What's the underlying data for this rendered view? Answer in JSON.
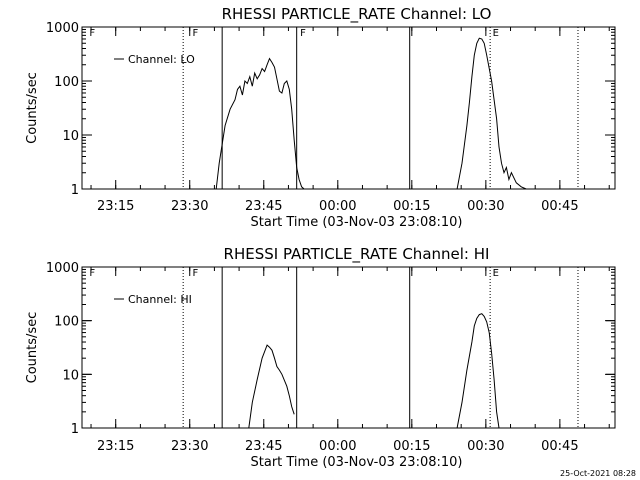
{
  "chart_data": [
    {
      "type": "line",
      "title": "RHESSI PARTICLE_RATE Channel: LO",
      "xlabel": "Start Time (03-Nov-03 23:08:10)",
      "ylabel": "Counts/sec",
      "yscale": "log",
      "ylim": [
        1,
        1000
      ],
      "xlim_minutes": [
        0,
        108
      ],
      "x_tick_labels": [
        "23:15",
        "23:30",
        "23:45",
        "00:00",
        "00:15",
        "00:30",
        "00:45"
      ],
      "x_tick_minutes": [
        6.83,
        21.83,
        36.83,
        51.83,
        66.83,
        81.83,
        96.83
      ],
      "y_tick_labels": [
        "1",
        "10",
        "100",
        "1000"
      ],
      "y_tick_values": [
        1,
        10,
        100,
        1000
      ],
      "legend": {
        "label": "Channel: LO",
        "position": "top-left"
      },
      "series": [
        {
          "name": "Channel: LO",
          "segments": [
            {
              "x": [
                27.2,
                27.8,
                29.0,
                30.0,
                31.0,
                31.5,
                32.0,
                32.5,
                33.0,
                33.5,
                34.0,
                34.5,
                35.0,
                35.5,
                36.0,
                36.5,
                37.0,
                37.5,
                38.0,
                38.5,
                39.0,
                39.5,
                40.0,
                40.5,
                41.0,
                41.5,
                42.0,
                42.5,
                43.0,
                43.5,
                44.0,
                44.5,
                45.0
              ],
              "y": [
                1.0,
                3.0,
                15.0,
                30.0,
                45.0,
                70.0,
                80.0,
                55.0,
                100.0,
                90.0,
                120.0,
                80.0,
                140.0,
                110.0,
                130.0,
                170.0,
                150.0,
                200.0,
                260.0,
                220.0,
                180.0,
                110.0,
                65.0,
                60.0,
                90.0,
                100.0,
                70.0,
                30.0,
                8.0,
                2.5,
                1.5,
                1.1,
                1.0
              ]
            },
            {
              "x": [
                76.0,
                77.0,
                78.0,
                78.5,
                79.0,
                79.5,
                80.0,
                80.5,
                81.0,
                81.5,
                82.0,
                83.0,
                84.0,
                84.5,
                85.0,
                85.5,
                86.0,
                86.5,
                87.0,
                88.0,
                89.0,
                90.0
              ],
              "y": [
                1.0,
                3.0,
                15.0,
                40.0,
                120.0,
                300.0,
                500.0,
                620.0,
                600.0,
                500.0,
                300.0,
                100.0,
                20.0,
                6.0,
                3.0,
                2.0,
                2.5,
                1.5,
                2.0,
                1.3,
                1.1,
                1.0
              ]
            }
          ]
        }
      ],
      "solid_verticals_minutes": [
        28.4,
        43.5,
        66.4
      ],
      "dotted_verticals_minutes": [
        20.5,
        82.7,
        100.5
      ],
      "flags": [
        {
          "label": "F",
          "x_minutes": 1.3
        },
        {
          "label": "F",
          "x_minutes": 22.2
        },
        {
          "label": "F",
          "x_minutes": 44.0
        },
        {
          "label": "E",
          "x_minutes": 83.0
        }
      ]
    },
    {
      "type": "line",
      "title": "RHESSI PARTICLE_RATE Channel: HI",
      "xlabel": "Start Time (03-Nov-03 23:08:10)",
      "ylabel": "Counts/sec",
      "yscale": "log",
      "ylim": [
        1,
        1000
      ],
      "xlim_minutes": [
        0,
        108
      ],
      "x_tick_labels": [
        "23:15",
        "23:30",
        "23:45",
        "00:00",
        "00:15",
        "00:30",
        "00:45"
      ],
      "x_tick_minutes": [
        6.83,
        21.83,
        36.83,
        51.83,
        66.83,
        81.83,
        96.83
      ],
      "y_tick_labels": [
        "1",
        "10",
        "100",
        "1000"
      ],
      "y_tick_values": [
        1,
        10,
        100,
        1000
      ],
      "legend": {
        "label": "Channel: HI",
        "position": "top-left"
      },
      "series": [
        {
          "name": "Channel: HI",
          "segments": [
            {
              "x": [
                33.8,
                34.5,
                35.5,
                36.5,
                37.5,
                38.0,
                38.5,
                39.0,
                39.5,
                40.0,
                40.5,
                41.5,
                42.0,
                42.5,
                43.0
              ],
              "y": [
                1.0,
                3.0,
                8.0,
                20.0,
                35.0,
                32.0,
                28.0,
                20.0,
                14.0,
                12.0,
                10.0,
                6.0,
                4.0,
                2.5,
                1.8
              ]
            },
            {
              "x": [
                76.0,
                77.0,
                78.0,
                79.0,
                79.5,
                80.0,
                80.5,
                81.0,
                81.5,
                82.0,
                82.5,
                83.0,
                83.5,
                84.0,
                84.5
              ],
              "y": [
                1.0,
                3.0,
                12.0,
                40.0,
                80.0,
                110.0,
                130.0,
                135.0,
                120.0,
                95.0,
                60.0,
                25.0,
                8.0,
                2.0,
                1.0
              ]
            }
          ]
        }
      ],
      "solid_verticals_minutes": [
        28.4,
        43.5,
        66.4
      ],
      "dotted_verticals_minutes": [
        20.5,
        82.7,
        100.5
      ],
      "flags": [
        {
          "label": "F",
          "x_minutes": 1.3
        },
        {
          "label": "F",
          "x_minutes": 22.2
        },
        {
          "label": "E",
          "x_minutes": 83.0
        }
      ]
    }
  ],
  "footer": {
    "timestamp": "25-Oct-2021 08:28"
  },
  "colors": {
    "background": "#ffffff",
    "foreground": "#000000"
  }
}
